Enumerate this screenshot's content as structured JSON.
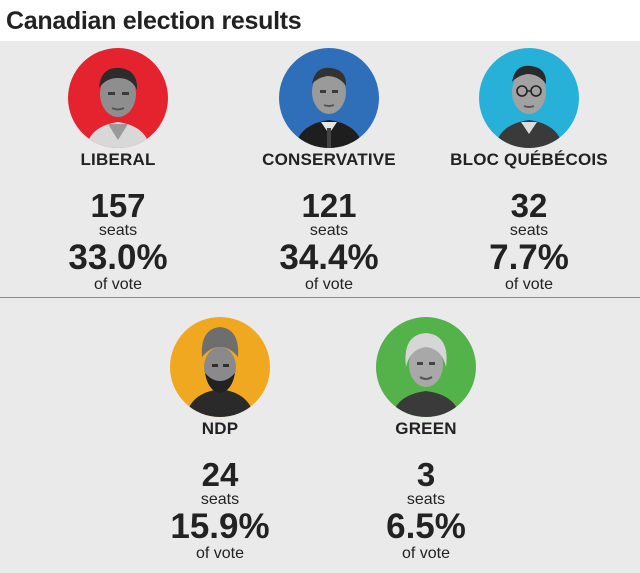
{
  "title": "Canadian election results",
  "colors": {
    "liberal": "#e4232e",
    "conservative": "#2f6fba",
    "bloc": "#27b1d8",
    "ndp": "#f0a821",
    "green": "#54b24a",
    "panel": "#eaeaea"
  },
  "parties": [
    {
      "name": "LIBERAL",
      "seats": "157",
      "seats_label": "seats",
      "vote": "33.0%",
      "vote_label": "of vote",
      "photo": "liberal-leader-photo"
    },
    {
      "name": "CONSERVATIVE",
      "seats": "121",
      "seats_label": "seats",
      "vote": "34.4%",
      "vote_label": "of vote",
      "photo": "conservative-leader-photo"
    },
    {
      "name": "BLOC QUÉBÉCOIS",
      "seats": "32",
      "seats_label": "seats",
      "vote": "7.7%",
      "vote_label": "of vote",
      "photo": "bloc-leader-photo"
    },
    {
      "name": "NDP",
      "seats": "24",
      "seats_label": "seats",
      "vote": "15.9%",
      "vote_label": "of vote",
      "photo": "ndp-leader-photo"
    },
    {
      "name": "GREEN",
      "seats": "3",
      "seats_label": "seats",
      "vote": "6.5%",
      "vote_label": "of vote",
      "photo": "green-leader-photo"
    }
  ]
}
